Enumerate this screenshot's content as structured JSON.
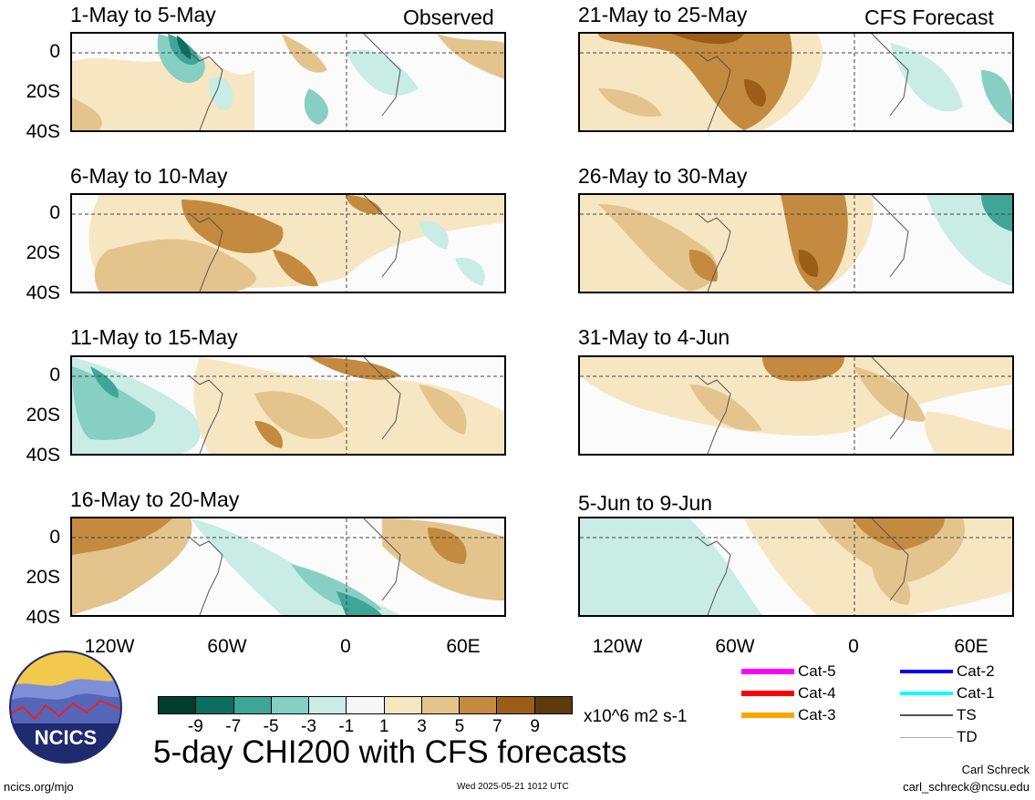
{
  "header": {
    "left_label": "Observed",
    "right_label": "CFS Forecast"
  },
  "panels_left": [
    {
      "title": "1-May to 5-May"
    },
    {
      "title": "6-May to 10-May"
    },
    {
      "title": "11-May to 15-May"
    },
    {
      "title": "16-May to 20-May"
    }
  ],
  "panels_right": [
    {
      "title": "21-May to 25-May"
    },
    {
      "title": "26-May to 30-May"
    },
    {
      "title": "31-May to 4-Jun"
    },
    {
      "title": "5-Jun to 9-Jun"
    }
  ],
  "y_axis_labels": [
    "0",
    "20S",
    "40S"
  ],
  "x_axis_labels": [
    "120W",
    "60W",
    "0",
    "60E"
  ],
  "colorbar": {
    "colors": [
      "#003d2e",
      "#0b6e5e",
      "#3fa597",
      "#86cfc2",
      "#c9ece5",
      "#f7f7f7",
      "#f6e6c2",
      "#e3c48d",
      "#c48a3f",
      "#9c5d18",
      "#5e3a0c"
    ],
    "ticks": [
      "-9",
      "-7",
      "-5",
      "-3",
      "-1",
      "1",
      "3",
      "5",
      "7",
      "9"
    ],
    "units": "x10^6 m2 s-1"
  },
  "main_title": "5-day CHI200 with CFS forecasts",
  "logo_text": "NCICS",
  "legend": [
    {
      "label": "Cat-5",
      "color": "#ff00ff"
    },
    {
      "label": "Cat-4",
      "color": "#ff0000"
    },
    {
      "label": "Cat-3",
      "color": "#ffa500"
    },
    {
      "label": "Cat-2",
      "color": "#0000ff"
    },
    {
      "label": "Cat-1",
      "color": "#00ffff"
    },
    {
      "label": "TS",
      "color": "#555555"
    },
    {
      "label": "TD",
      "color": "#aaaaaa"
    }
  ],
  "footer": {
    "url": "ncics.org/mjo",
    "timestamp": "Wed 2025-05-21 1012 UTC",
    "author": "Carl Schreck",
    "email": "carl_schreck@ncsu.edu"
  }
}
